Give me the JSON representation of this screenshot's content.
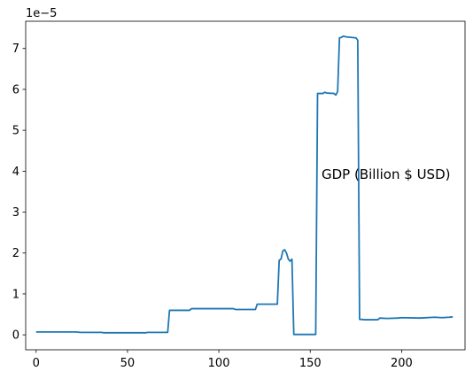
{
  "chart_data": {
    "type": "line",
    "title": "",
    "xlabel": "",
    "ylabel": "",
    "offset_text": "1e−5",
    "annotation": "GDP (Billion $ USD)",
    "xlim": [
      -5.7,
      234.7
    ],
    "ylim": [
      -0.365,
      7.665
    ],
    "x_ticks": [
      0,
      50,
      100,
      150,
      200
    ],
    "x_tick_labels": [
      "0",
      "50",
      "100",
      "150",
      "200"
    ],
    "y_ticks": [
      0,
      1,
      2,
      3,
      4,
      5,
      6,
      7
    ],
    "y_tick_labels": [
      "0",
      "1",
      "2",
      "3",
      "4",
      "5",
      "6",
      "7"
    ],
    "grid": false,
    "legend": "none",
    "series": [
      {
        "color": "#1f77b4",
        "points": [
          [
            0,
            0.07
          ],
          [
            22,
            0.07
          ],
          [
            24,
            0.06
          ],
          [
            36,
            0.06
          ],
          [
            37,
            0.05
          ],
          [
            60,
            0.05
          ],
          [
            61,
            0.06
          ],
          [
            72,
            0.06
          ],
          [
            73,
            0.6
          ],
          [
            84,
            0.6
          ],
          [
            85,
            0.64
          ],
          [
            108,
            0.64
          ],
          [
            109,
            0.62
          ],
          [
            120,
            0.62
          ],
          [
            121,
            0.75
          ],
          [
            132,
            0.75
          ],
          [
            133,
            1.82
          ],
          [
            134,
            1.85
          ],
          [
            135,
            2.05
          ],
          [
            136,
            2.08
          ],
          [
            137,
            2.0
          ],
          [
            138,
            1.85
          ],
          [
            139,
            1.8
          ],
          [
            140,
            1.85
          ],
          [
            141,
            0.01
          ],
          [
            153,
            0.01
          ],
          [
            154,
            5.9
          ],
          [
            157,
            5.9
          ],
          [
            158,
            5.93
          ],
          [
            159,
            5.91
          ],
          [
            163,
            5.9
          ],
          [
            164,
            5.86
          ],
          [
            165,
            5.95
          ],
          [
            166,
            7.26
          ],
          [
            167,
            7.27
          ],
          [
            168,
            7.3
          ],
          [
            170,
            7.28
          ],
          [
            175,
            7.26
          ],
          [
            176,
            7.2
          ],
          [
            177,
            0.38
          ],
          [
            180,
            0.37
          ],
          [
            187,
            0.37
          ],
          [
            188,
            0.41
          ],
          [
            192,
            0.4
          ],
          [
            198,
            0.41
          ],
          [
            200,
            0.42
          ],
          [
            210,
            0.41
          ],
          [
            218,
            0.43
          ],
          [
            222,
            0.42
          ],
          [
            226,
            0.43
          ],
          [
            228,
            0.44
          ]
        ]
      }
    ]
  }
}
